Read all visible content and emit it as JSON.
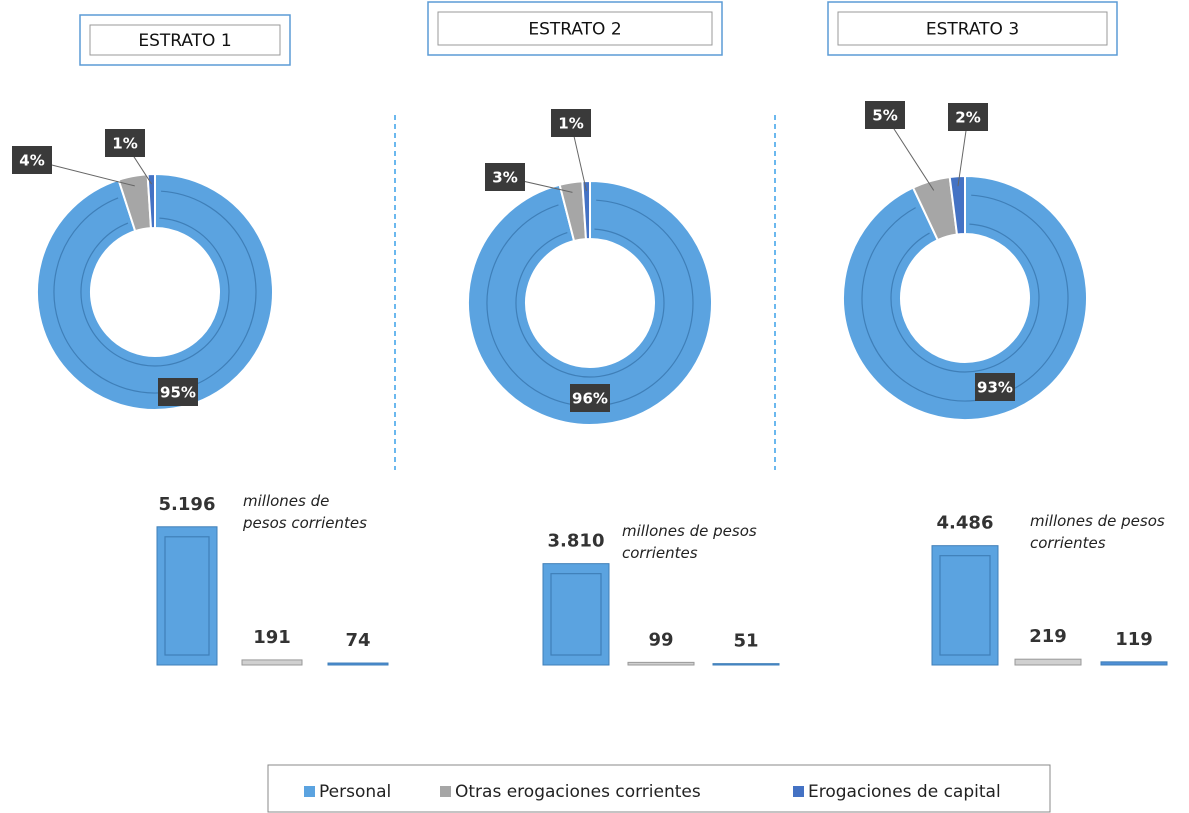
{
  "chart_data": [
    {
      "type": "donut",
      "title": "ESTRATO 1",
      "categories": [
        "Personal",
        "Otras erogaciones corrientes",
        "Erogaciones de capital"
      ],
      "values": [
        95,
        4,
        1
      ],
      "colors": [
        "#5ba3e0",
        "#a6a6a6",
        "#4472c4"
      ]
    },
    {
      "type": "bar",
      "annotation": "millones de pesos corrientes",
      "categories": [
        "Personal",
        "Otras erogaciones corrientes",
        "Erogaciones de capital"
      ],
      "values": [
        5196,
        191,
        74
      ],
      "value_labels": [
        "5.196",
        "191",
        "74"
      ],
      "colors": [
        "#5ba3e0",
        "#d0d0d0",
        "#4f8fd6"
      ]
    },
    {
      "type": "donut",
      "title": "ESTRATO 2",
      "categories": [
        "Personal",
        "Otras erogaciones corrientes",
        "Erogaciones de capital"
      ],
      "values": [
        96,
        3,
        1
      ],
      "colors": [
        "#5ba3e0",
        "#a6a6a6",
        "#4472c4"
      ]
    },
    {
      "type": "bar",
      "annotation": "millones de pesos corrientes",
      "categories": [
        "Personal",
        "Otras erogaciones corrientes",
        "Erogaciones de capital"
      ],
      "values": [
        3810,
        99,
        51
      ],
      "value_labels": [
        "3.810",
        "99",
        "51"
      ],
      "colors": [
        "#5ba3e0",
        "#d0d0d0",
        "#4f8fd6"
      ]
    },
    {
      "type": "donut",
      "title": "ESTRATO 3",
      "categories": [
        "Personal",
        "Otras erogaciones corrientes",
        "Erogaciones de capital"
      ],
      "values": [
        93,
        5,
        2
      ],
      "colors": [
        "#5ba3e0",
        "#a6a6a6",
        "#4472c4"
      ]
    },
    {
      "type": "bar",
      "annotation": "millones de pesos corrientes",
      "categories": [
        "Personal",
        "Otras erogaciones corrientes",
        "Erogaciones de capital"
      ],
      "values": [
        4486,
        219,
        119
      ],
      "value_labels": [
        "4.486",
        "219",
        "119"
      ],
      "colors": [
        "#5ba3e0",
        "#d0d0d0",
        "#4f8fd6"
      ]
    }
  ]
}
